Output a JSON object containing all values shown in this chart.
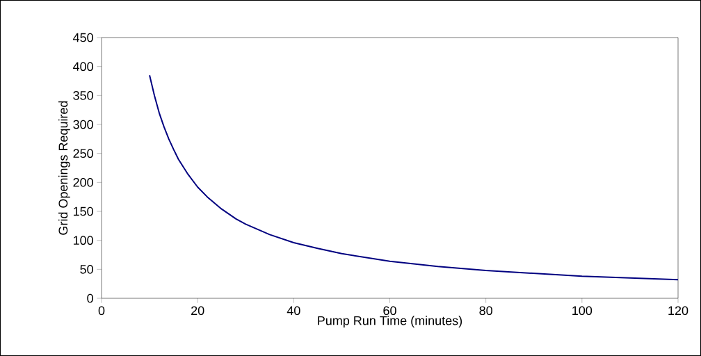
{
  "chart_data": {
    "type": "line",
    "xlabel": "Pump Run Time (minutes)",
    "ylabel": "Grid Openings Required",
    "x": [
      10,
      11,
      12,
      13,
      14,
      15,
      16,
      18,
      20,
      22,
      25,
      28,
      30,
      35,
      40,
      45,
      50,
      60,
      70,
      80,
      90,
      100,
      110,
      120
    ],
    "series": [
      {
        "color": "#000080",
        "values": [
          385,
          350,
          320,
          296,
          275,
          257,
          240,
          214,
          192,
          175,
          154,
          137,
          128,
          110,
          96,
          86,
          77,
          64,
          55,
          48,
          43,
          38,
          35,
          32
        ]
      }
    ],
    "xlim": [
      0,
      120
    ],
    "ylim": [
      0,
      450
    ],
    "xticks": [
      0,
      20,
      40,
      60,
      80,
      100,
      120
    ],
    "yticks": [
      0,
      50,
      100,
      150,
      200,
      250,
      300,
      350,
      400,
      450
    ],
    "grid": false,
    "marker": "none",
    "line_style": "solid"
  }
}
